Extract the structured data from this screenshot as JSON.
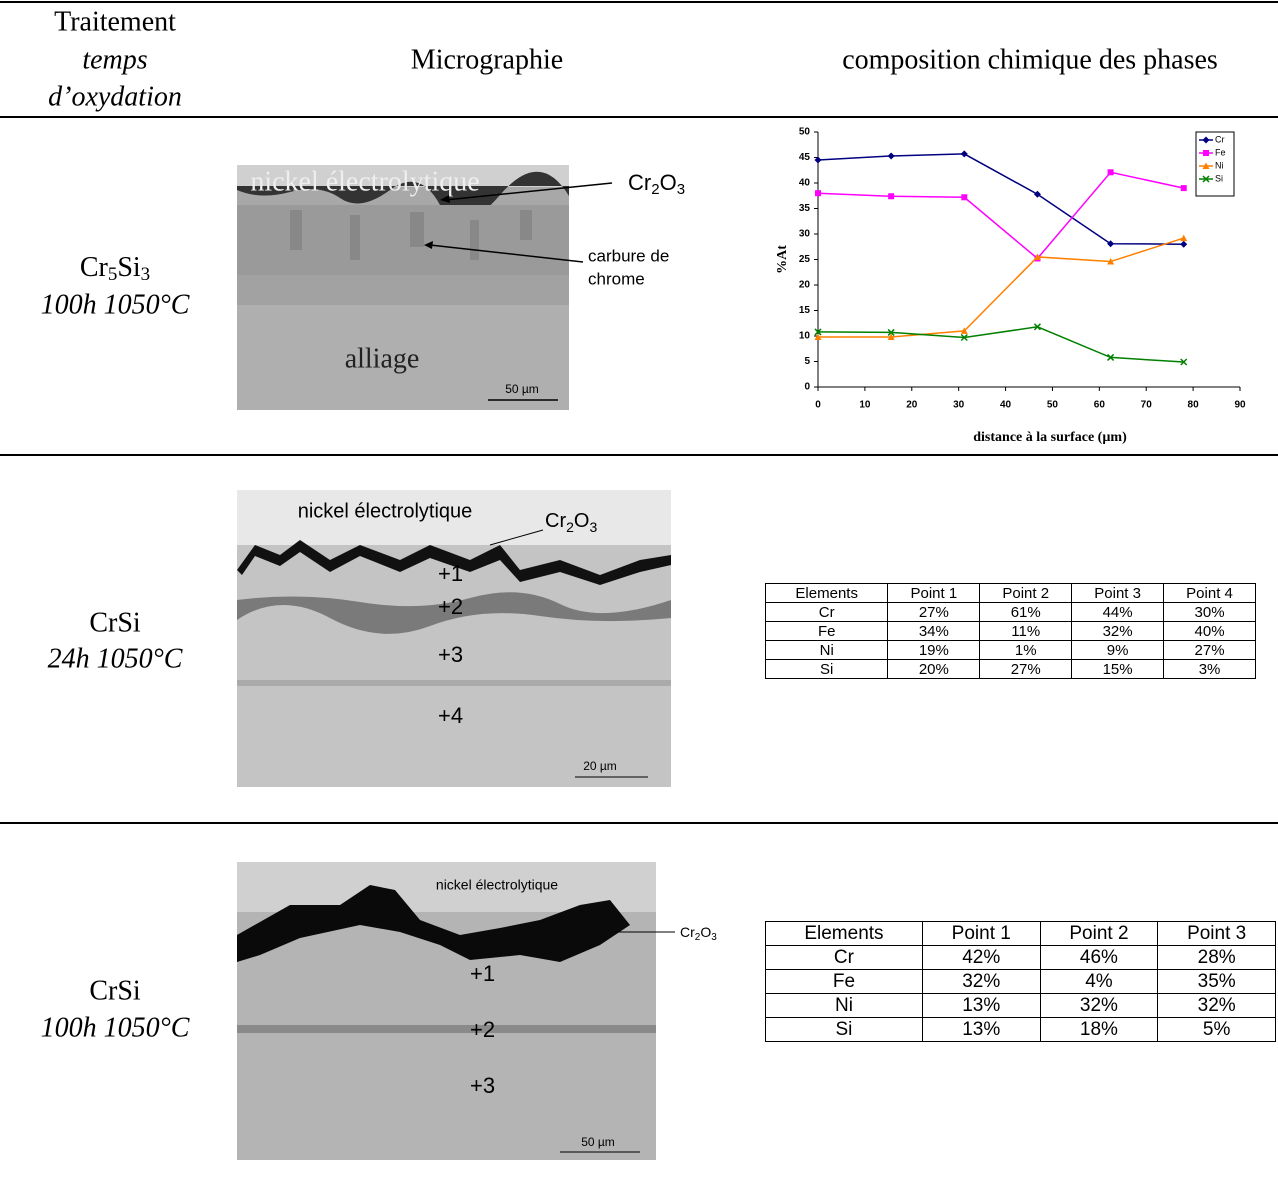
{
  "header": {
    "treatment": "Traitement",
    "time": "temps",
    "oxidation": "d’oxydation",
    "micrograph": "Micrographie",
    "composition": "composition chimique des phases"
  },
  "rows": [
    {
      "sample": [
        "Cr",
        "5",
        "Si",
        "3"
      ],
      "condition": "100h 1050°C",
      "micrograph": {
        "layer": "nickel électrolytique",
        "oxide": [
          "Cr",
          "2",
          "O",
          "3"
        ],
        "carbide": [
          "carbure de",
          "chrome"
        ],
        "alloy": "alliage",
        "scale": "50 µm"
      }
    },
    {
      "sample": "CrSi",
      "condition": "24h 1050°C",
      "micrograph": {
        "layer": "nickel électrolytique",
        "oxide": [
          "Cr",
          "2",
          "O",
          "3"
        ],
        "points": [
          "1",
          "2",
          "3",
          "4"
        ],
        "scale": "20 µm"
      },
      "table": {
        "header": [
          "Elements",
          "Point 1",
          "Point 2",
          "Point 3",
          "Point 4"
        ],
        "rows": [
          [
            "Cr",
            "27%",
            "61%",
            "44%",
            "30%"
          ],
          [
            "Fe",
            "34%",
            "11%",
            "32%",
            "40%"
          ],
          [
            "Ni",
            "19%",
            "1%",
            "9%",
            "27%"
          ],
          [
            "Si",
            "20%",
            "27%",
            "15%",
            "3%"
          ]
        ]
      }
    },
    {
      "sample": "CrSi",
      "condition": "100h 1050°C",
      "micrograph": {
        "layer": "nickel électrolytique",
        "oxide": [
          "Cr",
          "2",
          "O",
          "3"
        ],
        "points": [
          "1",
          "2",
          "3"
        ],
        "scale": "50 µm"
      },
      "table": {
        "header": [
          "Elements",
          "Point 1",
          "Point 2",
          "Point 3"
        ],
        "rows": [
          [
            "Cr",
            "42%",
            "46%",
            "28%"
          ],
          [
            "Fe",
            "32%",
            "4%",
            "35%"
          ],
          [
            "Ni",
            "13%",
            "32%",
            "32%"
          ],
          [
            "Si",
            "13%",
            "18%",
            "5%"
          ]
        ]
      }
    }
  ],
  "chart_data": {
    "type": "line",
    "x_label": "distance à la surface (µm)",
    "y_label": "%At",
    "x": [
      0,
      15.6,
      31.2,
      46.8,
      62.4,
      78
    ],
    "series": [
      {
        "name": "Cr",
        "color": "#000080",
        "marker": "diamond",
        "values": [
          44.5,
          45.3,
          45.7,
          37.8,
          28.1,
          28
        ]
      },
      {
        "name": "Fe",
        "color": "#ff00ff",
        "marker": "square",
        "values": [
          38,
          37.4,
          37.2,
          25.2,
          42.1,
          39
        ]
      },
      {
        "name": "Ni",
        "color": "#ff8000",
        "marker": "triangle",
        "values": [
          9.8,
          9.8,
          11,
          25.5,
          24.6,
          29.2
        ]
      },
      {
        "name": "Si",
        "color": "#008000",
        "marker": "x",
        "values": [
          10.8,
          10.7,
          9.7,
          11.8,
          5.8,
          4.9
        ]
      }
    ],
    "xlim": [
      0,
      90
    ],
    "xticks": [
      0,
      10,
      20,
      30,
      40,
      50,
      60,
      70,
      80,
      90
    ],
    "ylim": [
      0,
      50
    ],
    "yticks": [
      0,
      5,
      10,
      15,
      20,
      25,
      30,
      35,
      40,
      45,
      50
    ],
    "grid": false,
    "legend": "top-right"
  }
}
